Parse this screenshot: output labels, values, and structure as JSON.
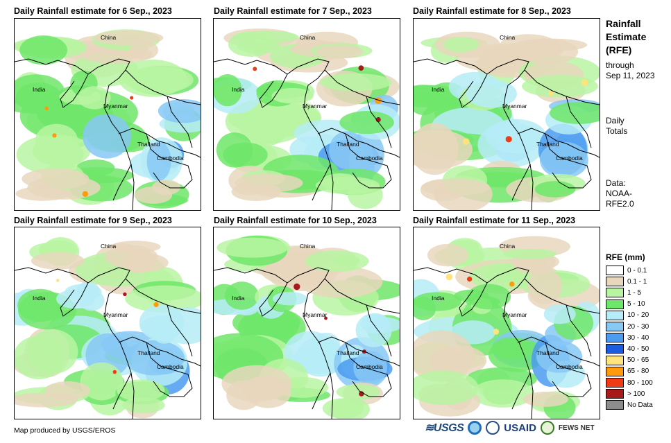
{
  "panels": [
    {
      "title": "Daily Rainfall estimate for 6  Sep., 2023"
    },
    {
      "title": "Daily Rainfall estimate for 7  Sep., 2023"
    },
    {
      "title": "Daily Rainfall estimate for 8  Sep., 2023"
    },
    {
      "title": "Daily Rainfall estimate for 9  Sep., 2023"
    },
    {
      "title": "Daily Rainfall estimate for 10  Sep., 2023"
    },
    {
      "title": "Daily Rainfall estimate for 11  Sep., 2023"
    }
  ],
  "map_labels": {
    "china": "China",
    "india": "India",
    "myanmar": "Myanmar",
    "thailand": "Thailand",
    "cambodia": "Cambodia"
  },
  "side": {
    "title_line1": "Rainfall",
    "title_line2": "Estimate",
    "title_line3": "(RFE)",
    "through": "through",
    "through_date": "Sep 11, 2023",
    "daily": "Daily",
    "totals": "Totals",
    "data_label": "Data:",
    "data_src1": "NOAA-",
    "data_src2": "RFE2.0"
  },
  "legend": {
    "title": "RFE (mm)",
    "items": [
      {
        "label": "0 - 0.1",
        "color": "#ffffff"
      },
      {
        "label": "0.1 - 1",
        "color": "#e8d7bd"
      },
      {
        "label": "1 - 5",
        "color": "#b9f4a2"
      },
      {
        "label": "5 - 10",
        "color": "#6ee66a"
      },
      {
        "label": "10 - 20",
        "color": "#b6ecf7"
      },
      {
        "label": "20 - 30",
        "color": "#87c8f5"
      },
      {
        "label": "30 - 40",
        "color": "#4b9bf0"
      },
      {
        "label": "40 - 50",
        "color": "#1a5be0"
      },
      {
        "label": "50 - 65",
        "color": "#ffe37d"
      },
      {
        "label": "65 - 80",
        "color": "#ff9a0c"
      },
      {
        "label": "80 - 100",
        "color": "#ee3b16"
      },
      {
        "label": "> 100",
        "color": "#a61a1a"
      },
      {
        "label": "No Data",
        "color": "#8c8c8c"
      }
    ]
  },
  "footer": {
    "credit": "Map produced by USGS/EROS",
    "logo_usgs": "≋USGS",
    "logo_usaid": "USAID",
    "logo_fews": "FEWS NET"
  }
}
